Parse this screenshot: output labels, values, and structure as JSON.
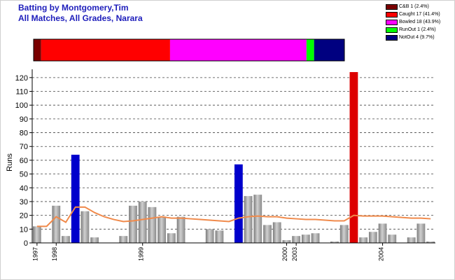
{
  "title": {
    "line1": "Batting by Montgomery,Tim",
    "line2": "All Matches, All Grades, Narara"
  },
  "legend": [
    {
      "label": "C&B 1 (2.4%)",
      "color": "#7a0000"
    },
    {
      "label": "Caught 17 (41.4%)",
      "color": "#ff0000"
    },
    {
      "label": "Bowled 18 (43.9%)",
      "color": "#ff00ff"
    },
    {
      "label": "RunOut 1 (2.4%)",
      "color": "#00ff00"
    },
    {
      "label": "NotOut 4 (9.7%)",
      "color": "#000080"
    }
  ],
  "chart_data": {
    "type": "bar",
    "ylabel": "Runs",
    "ylim": [
      0,
      125
    ],
    "yticks": [
      0,
      10,
      20,
      30,
      40,
      50,
      60,
      70,
      80,
      90,
      100,
      110,
      120
    ],
    "grid": true,
    "xtick_labels": [
      {
        "label": "1997",
        "index": 0
      },
      {
        "label": "1998",
        "index": 2
      },
      {
        "label": "1999",
        "index": 11
      },
      {
        "label": "2000",
        "index": 26
      },
      {
        "label": "2003",
        "index": 27
      },
      {
        "label": "2004",
        "index": 36
      }
    ],
    "dismissal_breakdown": [
      {
        "name": "C&B",
        "count": 1,
        "percent": 2.4
      },
      {
        "name": "Caught",
        "count": 17,
        "percent": 41.4
      },
      {
        "name": "Bowled",
        "count": 18,
        "percent": 43.9
      },
      {
        "name": "RunOut",
        "count": 1,
        "percent": 2.4
      },
      {
        "name": "NotOut",
        "count": 4,
        "percent": 9.7
      }
    ],
    "innings": [
      12,
      0,
      27,
      5,
      64,
      23,
      4,
      0,
      0,
      5,
      27,
      30,
      26,
      19,
      7,
      19,
      0,
      0,
      10,
      9,
      0,
      57,
      34,
      35,
      13,
      15,
      2,
      5,
      6,
      7,
      0,
      1,
      13,
      124,
      4,
      8,
      14,
      6,
      0,
      4,
      14,
      1
    ],
    "highlight": {
      "4": "#0000cc",
      "21": "#0000cc",
      "33": "#dd0000"
    },
    "average_line": {
      "name": "Average",
      "color": "#f08a4b",
      "values": [
        12,
        12,
        19,
        15,
        26,
        26,
        22,
        19,
        17,
        15.5,
        16,
        17,
        18,
        19,
        18,
        18,
        17.5,
        17,
        16.5,
        16,
        15.5,
        18,
        19,
        19.5,
        19,
        19,
        18,
        17.5,
        17,
        17,
        16.5,
        16,
        16,
        20,
        19.5,
        19.5,
        19.5,
        19,
        18.5,
        18,
        18,
        17.5
      ]
    }
  }
}
